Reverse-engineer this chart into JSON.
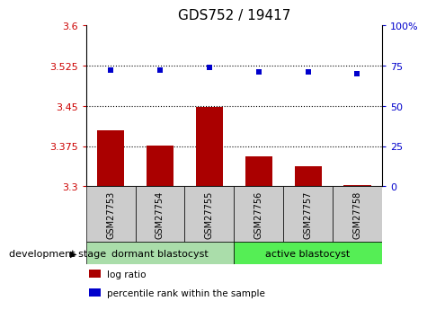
{
  "title": "GDS752 / 19417",
  "samples": [
    "GSM27753",
    "GSM27754",
    "GSM27755",
    "GSM27756",
    "GSM27757",
    "GSM27758"
  ],
  "log_ratio": [
    3.405,
    3.375,
    3.447,
    3.355,
    3.338,
    3.302
  ],
  "percentile_rank": [
    72,
    72,
    74,
    71,
    71,
    70
  ],
  "bar_color": "#aa0000",
  "dot_color": "#0000cc",
  "bar_baseline": 3.3,
  "ylim_left": [
    3.3,
    3.6
  ],
  "ylim_right": [
    0,
    100
  ],
  "yticks_left": [
    3.3,
    3.375,
    3.45,
    3.525,
    3.6
  ],
  "yticks_right": [
    0,
    25,
    50,
    75,
    100
  ],
  "ytick_labels_left": [
    "3.3",
    "3.375",
    "3.45",
    "3.525",
    "3.6"
  ],
  "ytick_labels_right": [
    "0",
    "25",
    "50",
    "75",
    "100%"
  ],
  "hlines": [
    3.375,
    3.45,
    3.525
  ],
  "groups": [
    {
      "label": "dormant blastocyst",
      "indices": [
        0,
        1,
        2
      ],
      "color": "#aaddaa"
    },
    {
      "label": "active blastocyst",
      "indices": [
        3,
        4,
        5
      ],
      "color": "#55ee55"
    }
  ],
  "group_label": "development stage",
  "legend_items": [
    {
      "label": "log ratio",
      "color": "#aa0000"
    },
    {
      "label": "percentile rank within the sample",
      "color": "#0000cc"
    }
  ],
  "background_color": "#ffffff",
  "xtick_box_color": "#cccccc",
  "title_fontsize": 11,
  "tick_fontsize": 8,
  "sample_fontsize": 7,
  "group_fontsize": 8,
  "legend_fontsize": 7.5
}
